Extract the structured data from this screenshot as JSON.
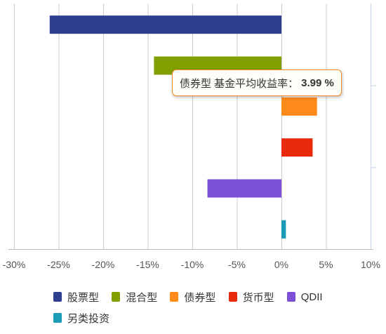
{
  "chart_data": {
    "type": "bar",
    "orientation": "horizontal",
    "categories": [
      "股票型",
      "混合型",
      "债券型",
      "货币型",
      "QDII",
      "另类投资"
    ],
    "values": [
      -26.0,
      -14.3,
      3.99,
      3.5,
      -8.3,
      0.5
    ],
    "colors": [
      "#2e3f8f",
      "#7fa000",
      "#ff8a1a",
      "#e8290b",
      "#7b4fd6",
      "#1a9bb8"
    ],
    "xlim": [
      -30,
      10
    ],
    "xticks": [
      -30,
      -25,
      -20,
      -15,
      -10,
      -5,
      0,
      5,
      10
    ],
    "xtick_labels": [
      "-30%",
      "-25%",
      "-20%",
      "-15%",
      "-10%",
      "-5%",
      "0%",
      "5%",
      "10%"
    ],
    "grid": true,
    "legend_position": "bottom"
  },
  "legend": {
    "items": [
      {
        "label": "股票型",
        "color": "#2e3f8f"
      },
      {
        "label": "混合型",
        "color": "#7fa000"
      },
      {
        "label": "债券型",
        "color": "#ff8a1a"
      },
      {
        "label": "货币型",
        "color": "#e8290b"
      },
      {
        "label": "QDII",
        "color": "#7b4fd6"
      },
      {
        "label": "另类投资",
        "color": "#1a9bb8"
      }
    ]
  },
  "tooltip": {
    "text": "债券型 基金平均收益率：",
    "value": "3.99 %",
    "border_color": "#f08c2a"
  }
}
